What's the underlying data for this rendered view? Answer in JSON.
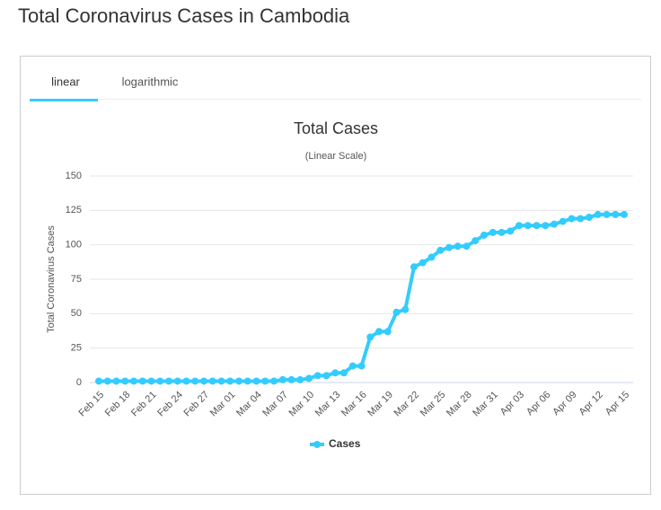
{
  "page_title": "Total Coronavirus Cases in Cambodia",
  "tabs": [
    "linear",
    "logarithmic"
  ],
  "chart_data": {
    "type": "line",
    "title": "Total Cases",
    "subtitle": "(Linear Scale)",
    "y_label": "Total Coronavirus Cases",
    "categories": [
      "Feb 15",
      null,
      null,
      "Feb 18",
      null,
      null,
      "Feb 21",
      null,
      null,
      "Feb 24",
      null,
      null,
      "Feb 27",
      null,
      null,
      "Mar 01",
      null,
      null,
      "Mar 04",
      null,
      null,
      "Mar 07",
      null,
      null,
      "Mar 10",
      null,
      null,
      "Mar 13",
      null,
      null,
      "Mar 16",
      null,
      null,
      "Mar 19",
      null,
      null,
      "Mar 22",
      null,
      null,
      "Mar 25",
      null,
      null,
      "Mar 28",
      null,
      null,
      "Mar 31",
      null,
      null,
      "Apr 03",
      null,
      null,
      "Apr 06",
      null,
      null,
      "Apr 09",
      null,
      null,
      "Apr 12",
      null,
      null,
      "Apr 15"
    ],
    "series": [
      {
        "name": "Cases",
        "color": "#33ccff",
        "values": [
          1,
          1,
          1,
          1,
          1,
          1,
          1,
          1,
          1,
          1,
          1,
          1,
          1,
          1,
          1,
          1,
          1,
          1,
          1,
          1,
          1,
          2,
          2,
          2,
          3,
          5,
          5,
          7,
          7,
          12,
          12,
          33,
          37,
          37,
          51,
          53,
          84,
          87,
          91,
          96,
          98,
          99,
          99,
          103,
          107,
          109,
          109,
          110,
          114,
          114,
          114,
          114,
          115,
          117,
          119,
          119,
          120,
          122,
          122,
          122,
          122
        ]
      }
    ],
    "ylim": [
      0,
      150
    ],
    "yticks": [
      0,
      25,
      50,
      75,
      100,
      125,
      150
    ],
    "grid": true
  }
}
